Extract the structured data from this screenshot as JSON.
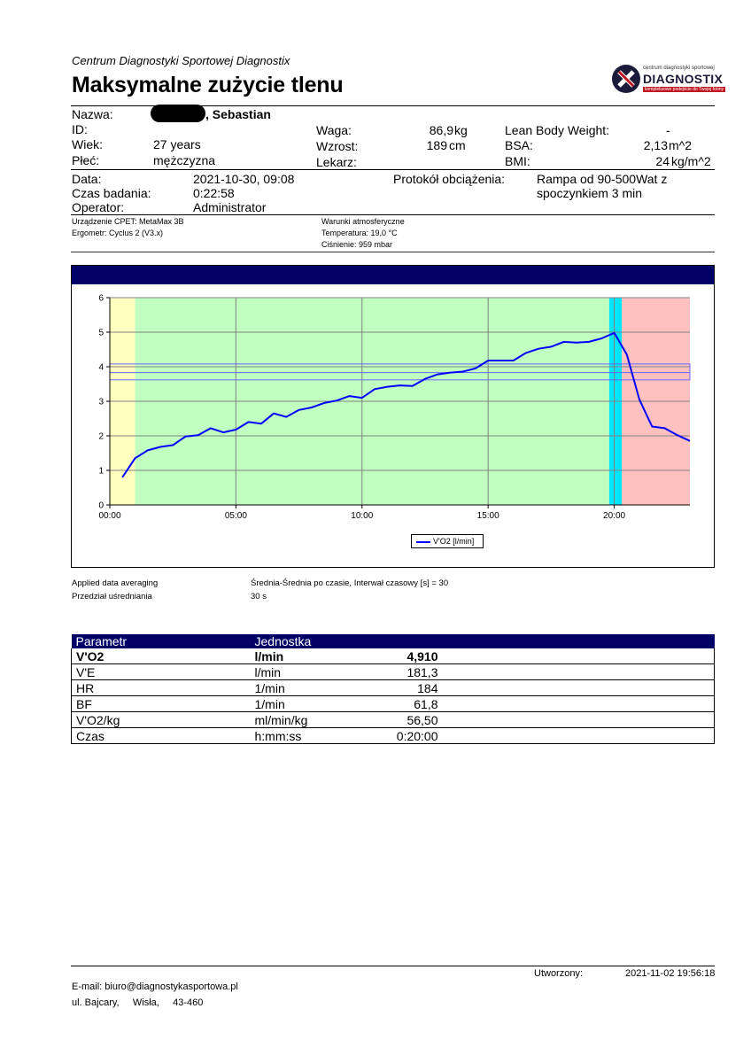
{
  "header": {
    "organization": "Centrum Diagnostyki Sportowej Diagnostix",
    "title": "Maksymalne zużycie tlenu",
    "logo": {
      "subtitle": "centrum diagnostyki sportowej",
      "brand": "DIAGNOSTIX",
      "tagline": "kompleksowe podejście do Twojej formy",
      "brand_color": "#c0161f",
      "dark_color": "#1a1a3a"
    }
  },
  "patient": {
    "name_label": "Nazwa:",
    "name_value": ", Sebastian",
    "id_label": "ID:",
    "age_label": "Wiek:",
    "age_value": "27 years",
    "sex_label": "Płeć:",
    "sex_value": "mężczyzna",
    "weight_label": "Waga:",
    "weight_value": "86,9",
    "weight_unit": "kg",
    "height_label": "Wzrost:",
    "height_value": "189",
    "height_unit": "cm",
    "doctor_label": "Lekarz:",
    "lbw_label": "Lean Body Weight:",
    "lbw_value": "-",
    "bsa_label": "BSA:",
    "bsa_value": "2,13",
    "bsa_unit": "m^2",
    "bmi_label": "BMI:",
    "bmi_value": "24",
    "bmi_unit": "kg/m^2"
  },
  "test": {
    "date_label": "Data:",
    "date_value": "2021-10-30, 09:08",
    "duration_label": "Czas badania:",
    "duration_value": "0:22:58",
    "operator_label": "Operator:",
    "operator_value": "Administrator",
    "protocol_label": "Protokół obciążenia:",
    "protocol_line1": "Rampa od 90-500Wat z",
    "protocol_line2": "spoczynkiem 3 min"
  },
  "equipment": {
    "device": "Urządzenie CPET: MetaMax 3B",
    "ergometer": "Ergometr: Cyclus 2 (V3.x)",
    "conditions_title": "Warunki atmosferyczne",
    "temperature": "Temperatura: 19,0 °C",
    "pressure": "Ciśnienie: 959 mbar"
  },
  "chart_data": {
    "type": "line",
    "x_tick_labels": [
      "00:00",
      "05:00",
      "10:00",
      "15:00",
      "20:00"
    ],
    "y_tick_labels": [
      "0",
      "1",
      "2",
      "3",
      "4",
      "5",
      "6"
    ],
    "xlim": [
      0,
      23
    ],
    "ylim": [
      0,
      6
    ],
    "x_unit": "min",
    "grid": true,
    "legend_position": "bottom-center",
    "series": [
      {
        "name": "V'O2 [l/min]",
        "color": "#0000ff",
        "x": [
          0.5,
          1.0,
          1.5,
          2.0,
          2.5,
          3.0,
          3.5,
          4.0,
          4.5,
          5.0,
          5.5,
          6.0,
          6.5,
          7.0,
          7.5,
          8.0,
          8.5,
          9.0,
          9.5,
          10.0,
          10.5,
          11.0,
          11.5,
          12.0,
          12.5,
          13.0,
          13.5,
          14.0,
          14.5,
          15.0,
          15.5,
          16.0,
          16.5,
          17.0,
          17.5,
          18.0,
          18.5,
          19.0,
          19.5,
          20.0,
          20.5,
          21.0,
          21.5,
          22.0,
          22.5,
          23.0
        ],
        "y": [
          0.8,
          1.35,
          1.58,
          1.68,
          1.73,
          1.98,
          2.02,
          2.22,
          2.1,
          2.18,
          2.4,
          2.35,
          2.65,
          2.55,
          2.75,
          2.82,
          2.95,
          3.02,
          3.15,
          3.1,
          3.35,
          3.42,
          3.46,
          3.44,
          3.65,
          3.78,
          3.83,
          3.86,
          3.95,
          4.18,
          4.18,
          4.18,
          4.4,
          4.52,
          4.58,
          4.72,
          4.7,
          4.72,
          4.82,
          4.98,
          4.35,
          3.05,
          2.27,
          2.22,
          2.02,
          1.85
        ]
      }
    ],
    "zones": [
      {
        "from": 0,
        "to": 1.0,
        "color": "#ffffc0"
      },
      {
        "from": 1.0,
        "to": 19.8,
        "color": "#c0ffc0"
      },
      {
        "from": 19.8,
        "to": 20.3,
        "color": "#00e5ff"
      },
      {
        "from": 20.3,
        "to": 23,
        "color": "#ffc0c0"
      }
    ],
    "reference_band": {
      "low": 3.62,
      "high": 4.08,
      "mid": 3.83
    }
  },
  "averaging": {
    "label1": "Applied data averaging",
    "value1": "Średnia-Średnia po czasie, Interwał czasowy [s] = 30",
    "label2": "Przedział uśredniania",
    "value2": "30 s"
  },
  "params_table": {
    "headers": [
      "Parametr",
      "Jednostka",
      ""
    ],
    "rows": [
      {
        "param": "V'O2",
        "unit": "l/min",
        "value": "4,910",
        "bold": true
      },
      {
        "param": "V'E",
        "unit": "l/min",
        "value": "181,3",
        "bold": false
      },
      {
        "param": "HR",
        "unit": "1/min",
        "value": "184",
        "bold": false
      },
      {
        "param": "BF",
        "unit": "1/min",
        "value": "61,8",
        "bold": false
      },
      {
        "param": "V'O2/kg",
        "unit": "ml/min/kg",
        "value": "56,50",
        "bold": false
      },
      {
        "param": "Czas",
        "unit": "h:mm:ss",
        "value": "0:20:00",
        "bold": false
      }
    ]
  },
  "footer": {
    "created_label": "Utworzony:",
    "created_value": "2021-11-02 19:56:18",
    "email": "E-mail: biuro@diagnostykasportowa.pl",
    "address": "ul. Bajcary,     Wisła,     43-460"
  }
}
